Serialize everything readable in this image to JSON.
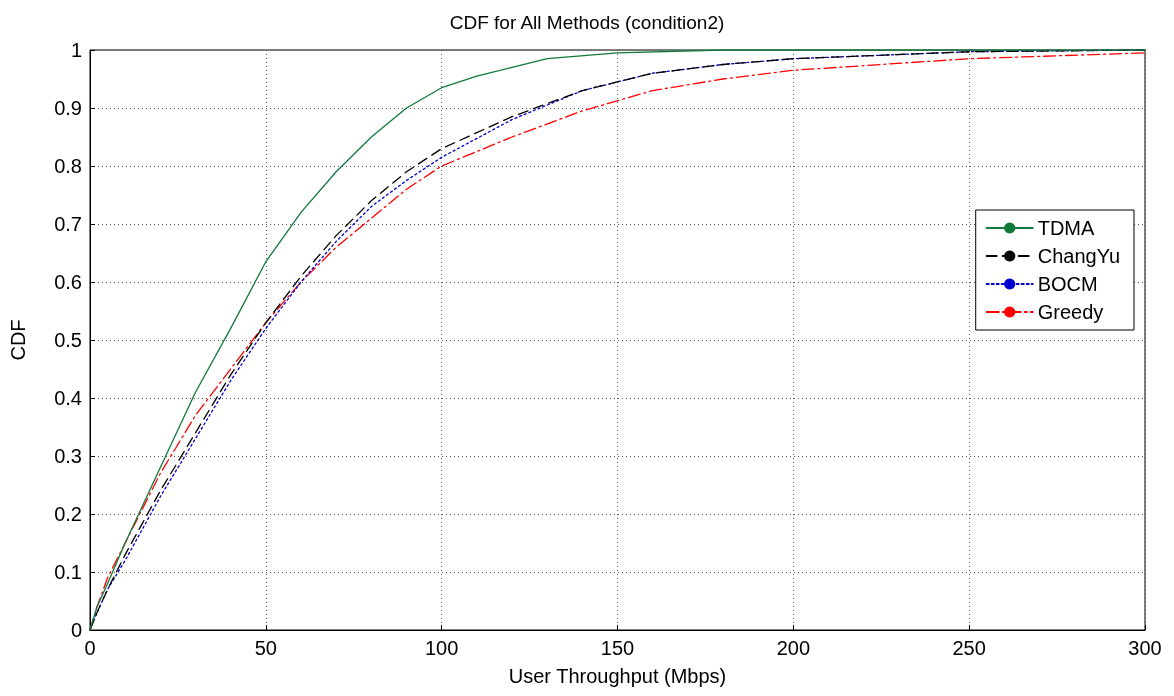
{
  "chart_data": {
    "type": "line",
    "title": "CDF for All Methods (condition2)",
    "xlabel": "User Throughput (Mbps)",
    "ylabel": "CDF",
    "xlim": [
      0,
      300
    ],
    "xticks": [
      0,
      50,
      100,
      150,
      200,
      250,
      300
    ],
    "ylim": [
      0,
      1
    ],
    "yticks": [
      0,
      0.1,
      0.2,
      0.3,
      0.4,
      0.5,
      0.6,
      0.7,
      0.8,
      0.9,
      1
    ],
    "grid": true,
    "legend": "right",
    "marker": "none",
    "series": [
      {
        "name": "TDMA",
        "color": "#117a3a",
        "line_style": "solid",
        "x": [
          0,
          2,
          5,
          10,
          20,
          30,
          40,
          50,
          60,
          70,
          80,
          90,
          100,
          110,
          120,
          130,
          150,
          180,
          300
        ],
        "values": [
          0,
          0.04,
          0.08,
          0.15,
          0.28,
          0.41,
          0.52,
          0.635,
          0.72,
          0.79,
          0.85,
          0.9,
          0.935,
          0.955,
          0.97,
          0.985,
          0.995,
          1,
          1
        ]
      },
      {
        "name": "ChangYu",
        "color": "#000000",
        "line_style": "dashed",
        "x": [
          0,
          2,
          5,
          10,
          20,
          30,
          40,
          50,
          60,
          70,
          80,
          90,
          100,
          120,
          140,
          160,
          180,
          200,
          250,
          300
        ],
        "values": [
          0,
          0.03,
          0.07,
          0.13,
          0.24,
          0.34,
          0.44,
          0.53,
          0.61,
          0.68,
          0.74,
          0.79,
          0.83,
          0.885,
          0.93,
          0.96,
          0.975,
          0.985,
          0.997,
          1
        ]
      },
      {
        "name": "BOCM",
        "color": "#0000cc",
        "line_style": "dotted",
        "x": [
          0,
          2,
          5,
          10,
          20,
          30,
          40,
          50,
          60,
          70,
          80,
          90,
          100,
          120,
          140,
          160,
          180,
          200,
          250,
          300
        ],
        "values": [
          0,
          0.03,
          0.07,
          0.12,
          0.23,
          0.33,
          0.43,
          0.52,
          0.6,
          0.67,
          0.73,
          0.775,
          0.815,
          0.88,
          0.93,
          0.96,
          0.975,
          0.985,
          0.997,
          1
        ]
      },
      {
        "name": "Greedy",
        "color": "#ff0000",
        "line_style": "dashdot",
        "x": [
          0,
          2,
          5,
          10,
          20,
          30,
          40,
          50,
          60,
          70,
          80,
          90,
          100,
          120,
          140,
          160,
          180,
          200,
          250,
          300
        ],
        "values": [
          0,
          0.04,
          0.09,
          0.15,
          0.27,
          0.37,
          0.45,
          0.53,
          0.6,
          0.66,
          0.71,
          0.76,
          0.8,
          0.85,
          0.895,
          0.93,
          0.95,
          0.965,
          0.985,
          0.995
        ]
      }
    ]
  }
}
